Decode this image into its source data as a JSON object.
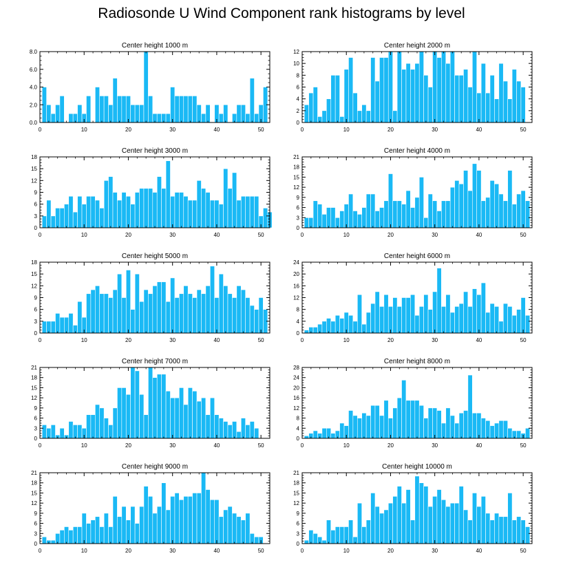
{
  "figure": {
    "title": "Radiosonde U Wind Component rank histograms by level"
  },
  "style": {
    "bar_color": "#1ab9f5",
    "bar_edge": "#ffffff",
    "axis_color": "#000000"
  },
  "chart_data": [
    {
      "type": "bar",
      "title": "Center height 1000 m",
      "xlim": [
        0,
        52
      ],
      "ylim": [
        0,
        8
      ],
      "xticks": [
        0,
        10,
        20,
        30,
        40,
        50
      ],
      "yticks": [
        0,
        2,
        4,
        6,
        8
      ],
      "ytick_labels": [
        "0.0",
        "2.0",
        "4.0",
        "6.0",
        "8.0"
      ],
      "values": [
        4,
        2,
        1,
        2,
        3,
        0,
        1,
        1,
        2,
        1,
        3,
        0,
        4,
        3,
        3,
        2,
        5,
        3,
        3,
        3,
        2,
        2,
        2,
        8,
        3,
        1,
        1,
        1,
        1,
        4,
        3,
        3,
        3,
        3,
        3,
        2,
        1,
        2,
        0,
        2,
        1,
        2,
        0,
        1,
        2,
        2,
        1,
        5,
        1,
        2,
        4
      ]
    },
    {
      "type": "bar",
      "title": "Center height 2000 m",
      "xlim": [
        0,
        52
      ],
      "ylim": [
        0,
        12
      ],
      "xticks": [
        0,
        10,
        20,
        30,
        40,
        50
      ],
      "yticks": [
        0,
        2,
        4,
        6,
        8,
        10,
        12
      ],
      "ytick_labels": [
        "0",
        "2",
        "4",
        "6",
        "8",
        "10",
        "12"
      ],
      "values": [
        3,
        5,
        6,
        1,
        2,
        4,
        8,
        8,
        1,
        9,
        11,
        5,
        2,
        3,
        2,
        11,
        7,
        11,
        11,
        12,
        2,
        12,
        9,
        10,
        9,
        10,
        12,
        8,
        6,
        12,
        11,
        12,
        10,
        12,
        8,
        8,
        9,
        6,
        12,
        5,
        10,
        5,
        8,
        4,
        10,
        7,
        4,
        9,
        7,
        6
      ]
    },
    {
      "type": "bar",
      "title": "Center height 3000 m",
      "xlim": [
        0,
        52
      ],
      "ylim": [
        0,
        18
      ],
      "xticks": [
        0,
        10,
        20,
        30,
        40,
        50
      ],
      "yticks": [
        0,
        3,
        6,
        9,
        12,
        15,
        18
      ],
      "ytick_labels": [
        "0",
        "3",
        "6",
        "9",
        "12",
        "15",
        "18"
      ],
      "values": [
        3,
        7,
        3,
        5,
        5,
        6,
        8,
        4,
        8,
        6,
        8,
        8,
        7,
        5,
        12,
        13,
        9,
        7,
        9,
        8,
        6,
        9,
        10,
        10,
        10,
        9,
        13,
        10,
        17,
        8,
        9,
        9,
        8,
        7,
        7,
        12,
        10,
        9,
        7,
        7,
        6,
        15,
        10,
        14,
        7,
        8,
        8,
        8,
        8,
        3,
        5,
        4
      ]
    },
    {
      "type": "bar",
      "title": "Center height 4000 m",
      "xlim": [
        0,
        52
      ],
      "ylim": [
        0,
        21
      ],
      "xticks": [
        0,
        10,
        20,
        30,
        40,
        50
      ],
      "yticks": [
        0,
        3,
        6,
        9,
        12,
        15,
        18,
        21
      ],
      "ytick_labels": [
        "0",
        "3",
        "6",
        "9",
        "12",
        "15",
        "18",
        "21"
      ],
      "values": [
        3,
        3,
        8,
        7,
        4,
        6,
        6,
        3,
        5,
        7,
        10,
        5,
        4,
        6,
        10,
        10,
        5,
        6,
        8,
        16,
        8,
        8,
        7,
        11,
        6,
        9,
        15,
        3,
        10,
        8,
        5,
        8,
        8,
        12,
        14,
        13,
        17,
        11,
        19,
        17,
        8,
        9,
        14,
        13,
        10,
        8,
        17,
        7,
        10,
        11,
        8
      ]
    },
    {
      "type": "bar",
      "title": "Center height 5000 m",
      "xlim": [
        0,
        52
      ],
      "ylim": [
        0,
        18
      ],
      "xticks": [
        0,
        10,
        20,
        30,
        40,
        50
      ],
      "yticks": [
        0,
        3,
        6,
        9,
        12,
        15,
        18
      ],
      "ytick_labels": [
        "0",
        "3",
        "6",
        "9",
        "12",
        "15",
        "18"
      ],
      "values": [
        3,
        3,
        3,
        5,
        4,
        4,
        5,
        2,
        8,
        4,
        10,
        11,
        12,
        10,
        10,
        9,
        11,
        15,
        9,
        16,
        6,
        15,
        8,
        11,
        10,
        12,
        13,
        13,
        8,
        14,
        9,
        10,
        12,
        10,
        9,
        11,
        10,
        12,
        17,
        9,
        15,
        12,
        10,
        9,
        12,
        11,
        9,
        7,
        6,
        9,
        6
      ]
    },
    {
      "type": "bar",
      "title": "Center height 6000 m",
      "xlim": [
        0,
        52
      ],
      "ylim": [
        0,
        24
      ],
      "xticks": [
        0,
        10,
        20,
        30,
        40,
        50
      ],
      "yticks": [
        0,
        4,
        8,
        12,
        16,
        20,
        24
      ],
      "ytick_labels": [
        "0",
        "4",
        "8",
        "12",
        "16",
        "20",
        "24"
      ],
      "values": [
        1,
        2,
        2,
        3,
        4,
        5,
        4,
        6,
        5,
        7,
        6,
        4,
        13,
        3,
        7,
        10,
        14,
        9,
        13,
        9,
        12,
        9,
        12,
        12,
        13,
        6,
        9,
        13,
        8,
        14,
        22,
        9,
        13,
        7,
        9,
        10,
        14,
        9,
        15,
        13,
        17,
        7,
        10,
        9,
        4,
        10,
        9,
        6,
        8,
        12,
        6
      ]
    },
    {
      "type": "bar",
      "title": "Center height 7000 m",
      "xlim": [
        0,
        52
      ],
      "ylim": [
        0,
        21
      ],
      "xticks": [
        0,
        10,
        20,
        30,
        40,
        50
      ],
      "yticks": [
        0,
        3,
        6,
        9,
        12,
        15,
        18,
        21
      ],
      "ytick_labels": [
        "0",
        "3",
        "6",
        "9",
        "12",
        "15",
        "18",
        "21"
      ],
      "values": [
        4,
        3,
        4,
        1,
        3,
        1,
        5,
        4,
        4,
        3,
        7,
        7,
        10,
        9,
        6,
        4,
        9,
        15,
        15,
        13,
        21,
        20,
        13,
        7,
        21,
        18,
        19,
        19,
        14,
        12,
        12,
        15,
        10,
        15,
        14,
        11,
        12,
        7,
        12,
        7,
        6,
        5,
        4,
        5,
        2,
        6,
        4,
        5,
        3
      ]
    },
    {
      "type": "bar",
      "title": "Center height 8000 m",
      "xlim": [
        0,
        52
      ],
      "ylim": [
        0,
        28
      ],
      "xticks": [
        0,
        10,
        20,
        30,
        40,
        50
      ],
      "yticks": [
        0,
        4,
        8,
        12,
        16,
        20,
        24,
        28
      ],
      "ytick_labels": [
        "0",
        "4",
        "8",
        "12",
        "16",
        "20",
        "24",
        "28"
      ],
      "values": [
        1,
        2,
        3,
        2,
        4,
        4,
        2,
        3,
        6,
        5,
        11,
        9,
        8,
        10,
        9,
        13,
        13,
        9,
        15,
        8,
        12,
        16,
        23,
        15,
        15,
        15,
        13,
        8,
        12,
        12,
        11,
        6,
        12,
        9,
        6,
        10,
        11,
        25,
        10,
        10,
        8,
        7,
        5,
        6,
        7,
        7,
        4,
        3,
        3,
        2,
        4
      ]
    },
    {
      "type": "bar",
      "title": "Center height 9000 m",
      "xlim": [
        0,
        52
      ],
      "ylim": [
        0,
        21
      ],
      "xticks": [
        0,
        10,
        20,
        30,
        40,
        50
      ],
      "yticks": [
        0,
        3,
        6,
        9,
        12,
        15,
        18,
        21
      ],
      "ytick_labels": [
        "0",
        "3",
        "6",
        "9",
        "12",
        "15",
        "18",
        "21"
      ],
      "values": [
        2,
        1,
        1,
        3,
        4,
        5,
        4,
        5,
        5,
        9,
        6,
        7,
        8,
        5,
        9,
        5,
        14,
        8,
        11,
        7,
        11,
        6,
        11,
        17,
        14,
        9,
        11,
        18,
        10,
        14,
        15,
        13,
        14,
        14,
        15,
        15,
        21,
        16,
        13,
        13,
        8,
        10,
        11,
        9,
        8,
        7,
        9,
        3,
        2,
        2
      ]
    },
    {
      "type": "bar",
      "title": "Center height 10000 m",
      "xlim": [
        0,
        52
      ],
      "ylim": [
        0,
        21
      ],
      "xticks": [
        0,
        10,
        20,
        30,
        40,
        50
      ],
      "yticks": [
        0,
        3,
        6,
        9,
        12,
        15,
        18,
        21
      ],
      "ytick_labels": [
        "0",
        "3",
        "6",
        "9",
        "12",
        "15",
        "18",
        "21"
      ],
      "values": [
        1,
        4,
        3,
        2,
        1,
        7,
        4,
        5,
        5,
        5,
        7,
        2,
        12,
        5,
        7,
        15,
        11,
        9,
        10,
        12,
        14,
        17,
        12,
        16,
        7,
        20,
        18,
        17,
        11,
        14,
        16,
        13,
        11,
        12,
        12,
        17,
        10,
        7,
        15,
        11,
        14,
        9,
        7,
        9,
        8,
        8,
        15,
        7,
        8,
        7,
        5
      ]
    }
  ]
}
